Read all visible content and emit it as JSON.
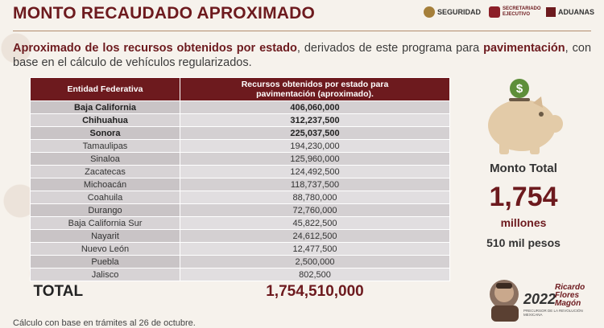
{
  "title": "MONTO RECAUDADO APROXIMADO",
  "logos": {
    "seguridad": "SEGURIDAD",
    "secretariado": "SECRETARIADO EJECUTIVO",
    "aduanas": "ADUANAS"
  },
  "intro": {
    "bold1": "Aproximado de los recursos obtenidos por estado",
    "text1": ", derivados de este programa para ",
    "bold2": "pavimentación",
    "text2": ", con base en el cálculo de vehículos regularizados."
  },
  "table": {
    "headers": [
      "Entidad Federativa",
      "Recursos obtenidos por estado para pavimentación (aproximado)."
    ],
    "rows": [
      {
        "state": "Baja California",
        "value": "406,060,000"
      },
      {
        "state": "Chihuahua",
        "value": "312,237,500"
      },
      {
        "state": "Sonora",
        "value": "225,037,500"
      },
      {
        "state": "Tamaulipas",
        "value": "194,230,000"
      },
      {
        "state": "Sinaloa",
        "value": "125,960,000"
      },
      {
        "state": "Zacatecas",
        "value": "124,492,500"
      },
      {
        "state": "Michoacán",
        "value": "118,737,500"
      },
      {
        "state": "Coahuila",
        "value": "88,780,000"
      },
      {
        "state": "Durango",
        "value": "72,760,000"
      },
      {
        "state": "Baja California Sur",
        "value": "45,822,500"
      },
      {
        "state": "Nayarit",
        "value": "24,612,500"
      },
      {
        "state": "Nuevo León",
        "value": "12,477,500"
      },
      {
        "state": "Puebla",
        "value": "2,500,000"
      },
      {
        "state": "Jalisco",
        "value": "802,500"
      }
    ],
    "total_label": "TOTAL",
    "total_value": "1,754,510,000"
  },
  "summary": {
    "label": "Monto Total",
    "number": "1,754",
    "unit": "millones",
    "sub": "510 mil pesos"
  },
  "seal": {
    "year": "2022",
    "year_label": "Año de",
    "name": "Ricardo Flores Magón",
    "caption": "PRECURSOR DE LA REVOLUCIÓN MEXICANA"
  },
  "footnote": "Cálculo con base en trámites al 26 de octubre."
}
